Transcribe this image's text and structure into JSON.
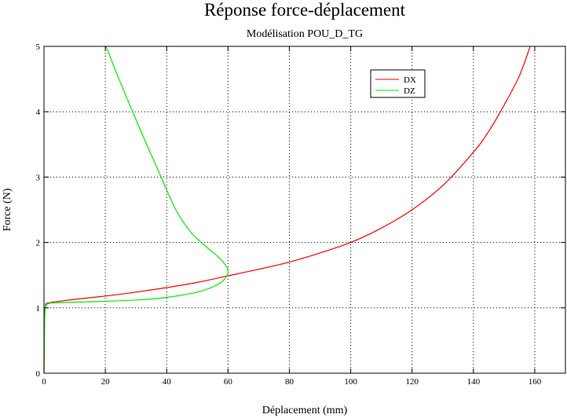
{
  "chart_data": {
    "type": "line",
    "title": "Réponse force-déplacement",
    "subtitle": "Modélisation POU_D_TG",
    "xlabel": "Déplacement (mm)",
    "ylabel": "Force (N)",
    "xlim": [
      0,
      170
    ],
    "ylim": [
      0,
      5
    ],
    "xticks": [
      0,
      20,
      40,
      60,
      80,
      100,
      120,
      140,
      160
    ],
    "yticks": [
      0,
      1,
      2,
      3,
      4,
      5
    ],
    "grid": true,
    "legend_position": "top-right",
    "series": [
      {
        "name": "DX",
        "color": "#ff0000",
        "points": [
          [
            0,
            0
          ],
          [
            0.1,
            0.5
          ],
          [
            0.2,
            0.9
          ],
          [
            0.5,
            1.03
          ],
          [
            1,
            1.07
          ],
          [
            5,
            1.1
          ],
          [
            10,
            1.13
          ],
          [
            20,
            1.18
          ],
          [
            30,
            1.24
          ],
          [
            40,
            1.31
          ],
          [
            50,
            1.39
          ],
          [
            60,
            1.49
          ],
          [
            70,
            1.59
          ],
          [
            80,
            1.7
          ],
          [
            90,
            1.84
          ],
          [
            100,
            2.0
          ],
          [
            110,
            2.22
          ],
          [
            120,
            2.5
          ],
          [
            130,
            2.87
          ],
          [
            140,
            3.38
          ],
          [
            145,
            3.7
          ],
          [
            150,
            4.1
          ],
          [
            155,
            4.55
          ],
          [
            158.5,
            5.0
          ]
        ]
      },
      {
        "name": "DZ",
        "color": "#00ee00",
        "points": [
          [
            0,
            0
          ],
          [
            0.1,
            0.5
          ],
          [
            0.3,
            0.9
          ],
          [
            1,
            1.05
          ],
          [
            5,
            1.08
          ],
          [
            20,
            1.1
          ],
          [
            30,
            1.12
          ],
          [
            40,
            1.16
          ],
          [
            50,
            1.24
          ],
          [
            55,
            1.32
          ],
          [
            58,
            1.4
          ],
          [
            59.5,
            1.48
          ],
          [
            60,
            1.55
          ],
          [
            59.5,
            1.63
          ],
          [
            57,
            1.77
          ],
          [
            53,
            1.93
          ],
          [
            48,
            2.15
          ],
          [
            43,
            2.5
          ],
          [
            38,
            3.02
          ],
          [
            33,
            3.55
          ],
          [
            28,
            4.1
          ],
          [
            24,
            4.55
          ],
          [
            21.5,
            4.85
          ],
          [
            20.2,
            5.0
          ]
        ]
      }
    ]
  }
}
